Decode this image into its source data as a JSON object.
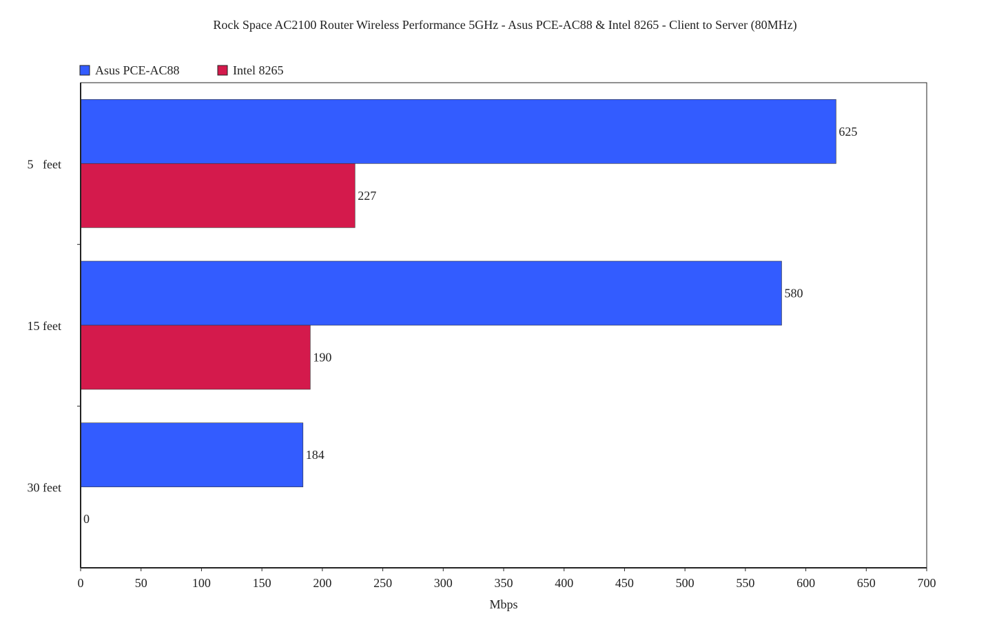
{
  "chart_data": {
    "type": "bar",
    "orientation": "horizontal",
    "title": "Rock Space AC2100 Router Wireless Performance 5GHz - Asus PCE-AC88 & Intel 8265 - Client to Server (80MHz)",
    "xlabel": "Mbps",
    "ylabel": "",
    "categories": [
      "5   feet",
      "15 feet",
      "30 feet"
    ],
    "series": [
      {
        "name": "Asus PCE-AC88",
        "color": "#335cff",
        "values": [
          625,
          580,
          184
        ]
      },
      {
        "name": "Intel 8265",
        "color": "#d41a4c",
        "values": [
          227,
          190,
          0
        ]
      }
    ],
    "xlim": [
      0,
      700
    ],
    "x_ticks": [
      0,
      50,
      100,
      150,
      200,
      250,
      300,
      350,
      400,
      450,
      500,
      550,
      600,
      650,
      700
    ],
    "grid": false,
    "legend": "top-left",
    "data_labels": true
  }
}
